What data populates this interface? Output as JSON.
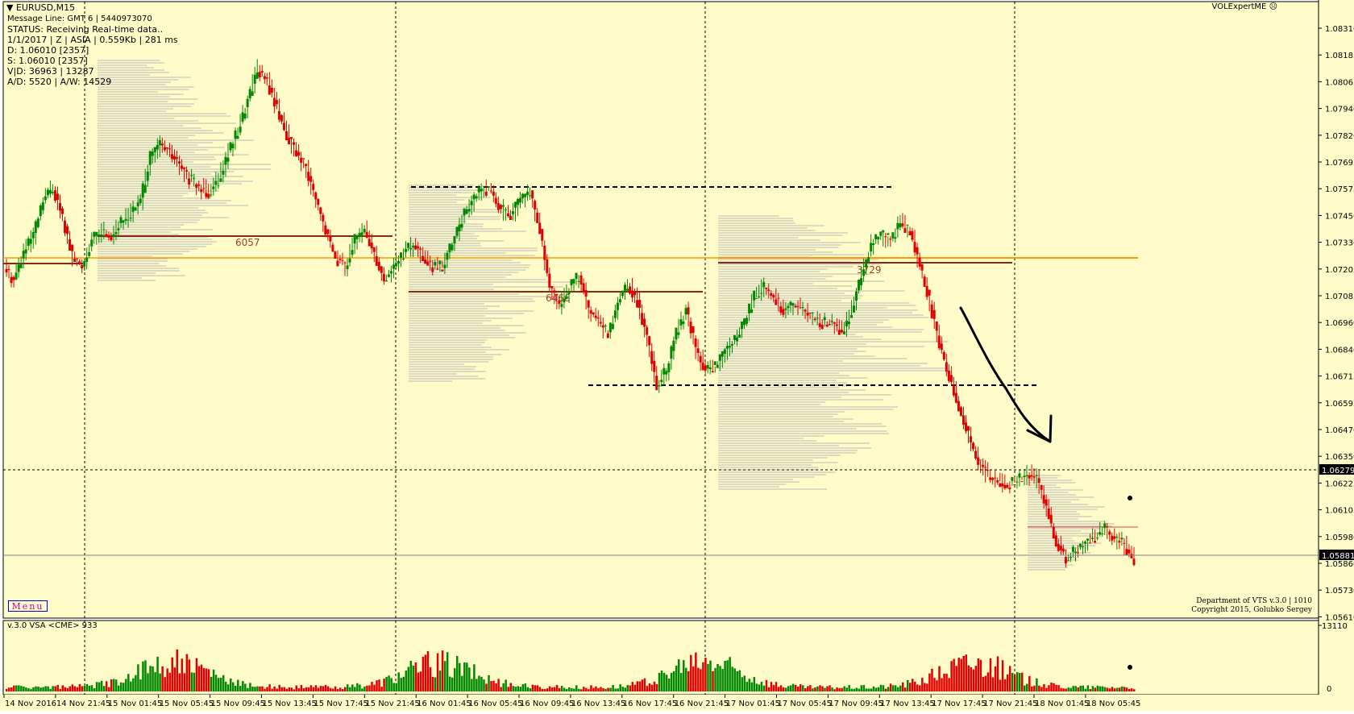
{
  "chart_header": {
    "symbol": "EURUSD,M15",
    "message_line": "Message Line: GMT 6 | 5440973070",
    "status": "STATUS:  Receiving Real-time data..",
    "session": "1/1/2017 | Z | ASIA | 0.559Kb | 281 ms",
    "d_line": "D: 1.06010  [2357]",
    "s_line": "S: 1.06010  [2357]",
    "vd_line": "V|D: 36963  | 13287",
    "aw_line": "A/D: 5520  | A/W: 14529"
  },
  "expert_name": "VOLExpertME",
  "menu_label": "Menu",
  "copyright": [
    "Department of VTS  v.3.0 | 1010",
    "Copyright 2015, Golubko Sergey"
  ],
  "price_axis": {
    "ticks": [
      "1.08310",
      "1.08185",
      "1.08065",
      "1.07940",
      "1.07820",
      "1.07695",
      "1.07575",
      "1.07450",
      "1.07330",
      "1.07205",
      "1.07085",
      "1.06960",
      "1.06840",
      "1.06715",
      "1.06595",
      "1.06470",
      "1.06350",
      "1.06225",
      "1.06105",
      "1.05980",
      "1.05860",
      "1.05730",
      "1.05610"
    ],
    "crosshair_price": "1.06279",
    "current_price": "1.05881"
  },
  "profile_labels": [
    "6057",
    "6466",
    "3729"
  ],
  "subwindow": {
    "label": "v.3.0 VSA <CME> 933",
    "max_label": "13110",
    "zero_label": "0"
  },
  "time_axis": [
    "14 Nov 2016",
    "14 Nov 21:45",
    "15 Nov 01:45",
    "15 Nov 05:45",
    "15 Nov 09:45",
    "15 Nov 13:45",
    "15 Nov 17:45",
    "15 Nov 21:45",
    "16 Nov 01:45",
    "16 Nov 05:45",
    "16 Nov 09:45",
    "16 Nov 13:45",
    "16 Nov 17:45",
    "16 Nov 21:45",
    "17 Nov 01:45",
    "17 Nov 05:45",
    "17 Nov 09:45",
    "17 Nov 13:45",
    "17 Nov 17:45",
    "17 Nov 21:45",
    "18 Nov 01:45",
    "18 Nov 05:45"
  ],
  "colors": {
    "background": "#FFFCCA",
    "bull": "#008800",
    "bear": "#E00000",
    "level_orange": "#FF9900",
    "poc_brown": "#8B2A12",
    "profile_gray": "#B8B8B8"
  },
  "chart_data": {
    "type": "candlestick",
    "price_range": [
      1.0561,
      1.0831
    ],
    "price_path": [
      1.0721,
      1.0716,
      1.0728,
      1.0736,
      1.0752,
      1.0758,
      1.0744,
      1.0726,
      1.0722,
      1.0734,
      1.0738,
      1.0736,
      1.0742,
      1.0746,
      1.0752,
      1.0772,
      1.0778,
      1.0774,
      1.0768,
      1.0762,
      1.0758,
      1.0756,
      1.0762,
      1.0774,
      1.0784,
      1.0798,
      1.0812,
      1.0806,
      1.0794,
      1.0782,
      1.0774,
      1.0766,
      1.0752,
      1.0738,
      1.0726,
      1.0722,
      1.0734,
      1.0738,
      1.0728,
      1.0716,
      1.0722,
      1.0728,
      1.0732,
      1.0726,
      1.0721,
      1.0722,
      1.0732,
      1.0744,
      1.0752,
      1.0758,
      1.0756,
      1.0748,
      1.0746,
      1.0752,
      1.0756,
      1.0738,
      1.0712,
      1.0704,
      1.0712,
      1.0718,
      1.0702,
      1.0696,
      1.0691,
      1.0706,
      1.0714,
      1.0706,
      1.0689,
      1.0668,
      1.0674,
      1.0692,
      1.0702,
      1.0684,
      1.0674,
      1.0676,
      1.0684,
      1.0688,
      1.0696,
      1.0708,
      1.0712,
      1.0708,
      1.0702,
      1.0704,
      1.0702,
      1.0698,
      1.0696,
      1.0696,
      1.0692,
      1.0702,
      1.0718,
      1.0732,
      1.0736,
      1.0734,
      1.0742,
      1.0738,
      1.0722,
      1.0706,
      1.0686,
      1.0672,
      1.0658,
      1.0644,
      1.0632,
      1.0626,
      1.0624,
      1.0622,
      1.0624,
      1.0627,
      1.0624,
      1.0612,
      1.0596,
      1.0588,
      1.0592,
      1.0596,
      1.0598,
      1.0602,
      1.0597,
      1.0594,
      1.0588
    ],
    "volume_max": 13110
  }
}
